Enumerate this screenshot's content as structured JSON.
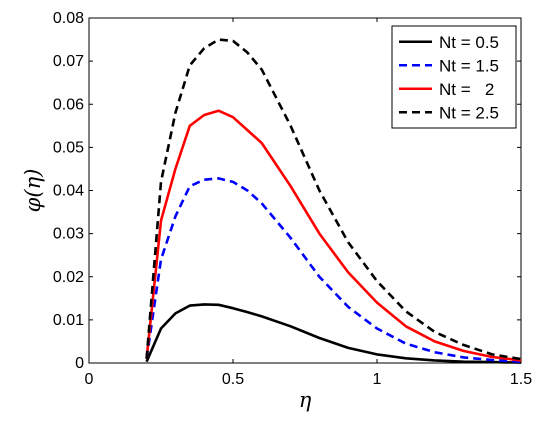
{
  "chart_data": {
    "type": "line",
    "title": "",
    "xlabel": "η",
    "ylabel": "φ(η)",
    "xlim": [
      0,
      1.5
    ],
    "ylim": [
      0,
      0.08
    ],
    "xticks": [
      0,
      0.5,
      1,
      1.5
    ],
    "xtick_labels": [
      "0",
      "0.5",
      "1",
      "1.5"
    ],
    "yticks": [
      0,
      0.01,
      0.02,
      0.03,
      0.04,
      0.05,
      0.06,
      0.07,
      0.08
    ],
    "ytick_labels": [
      "0",
      "0.01",
      "0.02",
      "0.03",
      "0.04",
      "0.05",
      "0.06",
      "0.07",
      "0.08"
    ],
    "grid": false,
    "legend_position": "top-right",
    "x": [
      0.2,
      0.25,
      0.3,
      0.35,
      0.4,
      0.45,
      0.5,
      0.55,
      0.6,
      0.7,
      0.8,
      0.9,
      1.0,
      1.1,
      1.2,
      1.3,
      1.4,
      1.5
    ],
    "series": [
      {
        "name": "Nt = 0.5",
        "color": "#000000",
        "dash": "solid",
        "values": [
          0.0003,
          0.008,
          0.0115,
          0.0133,
          0.0136,
          0.0135,
          0.0127,
          0.0118,
          0.0108,
          0.0085,
          0.0058,
          0.0035,
          0.002,
          0.0011,
          0.0006,
          0.0003,
          0.0002,
          0.0001
        ]
      },
      {
        "name": "Nt = 1.5",
        "color": "#0000ff",
        "dash": "dashed",
        "values": [
          0.001,
          0.024,
          0.034,
          0.041,
          0.0425,
          0.0428,
          0.042,
          0.04,
          0.037,
          0.029,
          0.02,
          0.013,
          0.008,
          0.0045,
          0.0025,
          0.0013,
          0.0007,
          0.0003
        ]
      },
      {
        "name": "Nt =   2",
        "color": "#ff0000",
        "dash": "solid",
        "values": [
          0.001,
          0.033,
          0.045,
          0.055,
          0.0575,
          0.0585,
          0.057,
          0.054,
          0.051,
          0.041,
          0.03,
          0.021,
          0.014,
          0.0085,
          0.005,
          0.0028,
          0.0014,
          0.0006
        ]
      },
      {
        "name": "Nt = 2.5",
        "color": "#000000",
        "dash": "dashed",
        "values": [
          0.001,
          0.042,
          0.058,
          0.069,
          0.073,
          0.075,
          0.0747,
          0.072,
          0.068,
          0.055,
          0.04,
          0.028,
          0.019,
          0.012,
          0.0072,
          0.0042,
          0.002,
          0.0009
        ]
      }
    ]
  }
}
